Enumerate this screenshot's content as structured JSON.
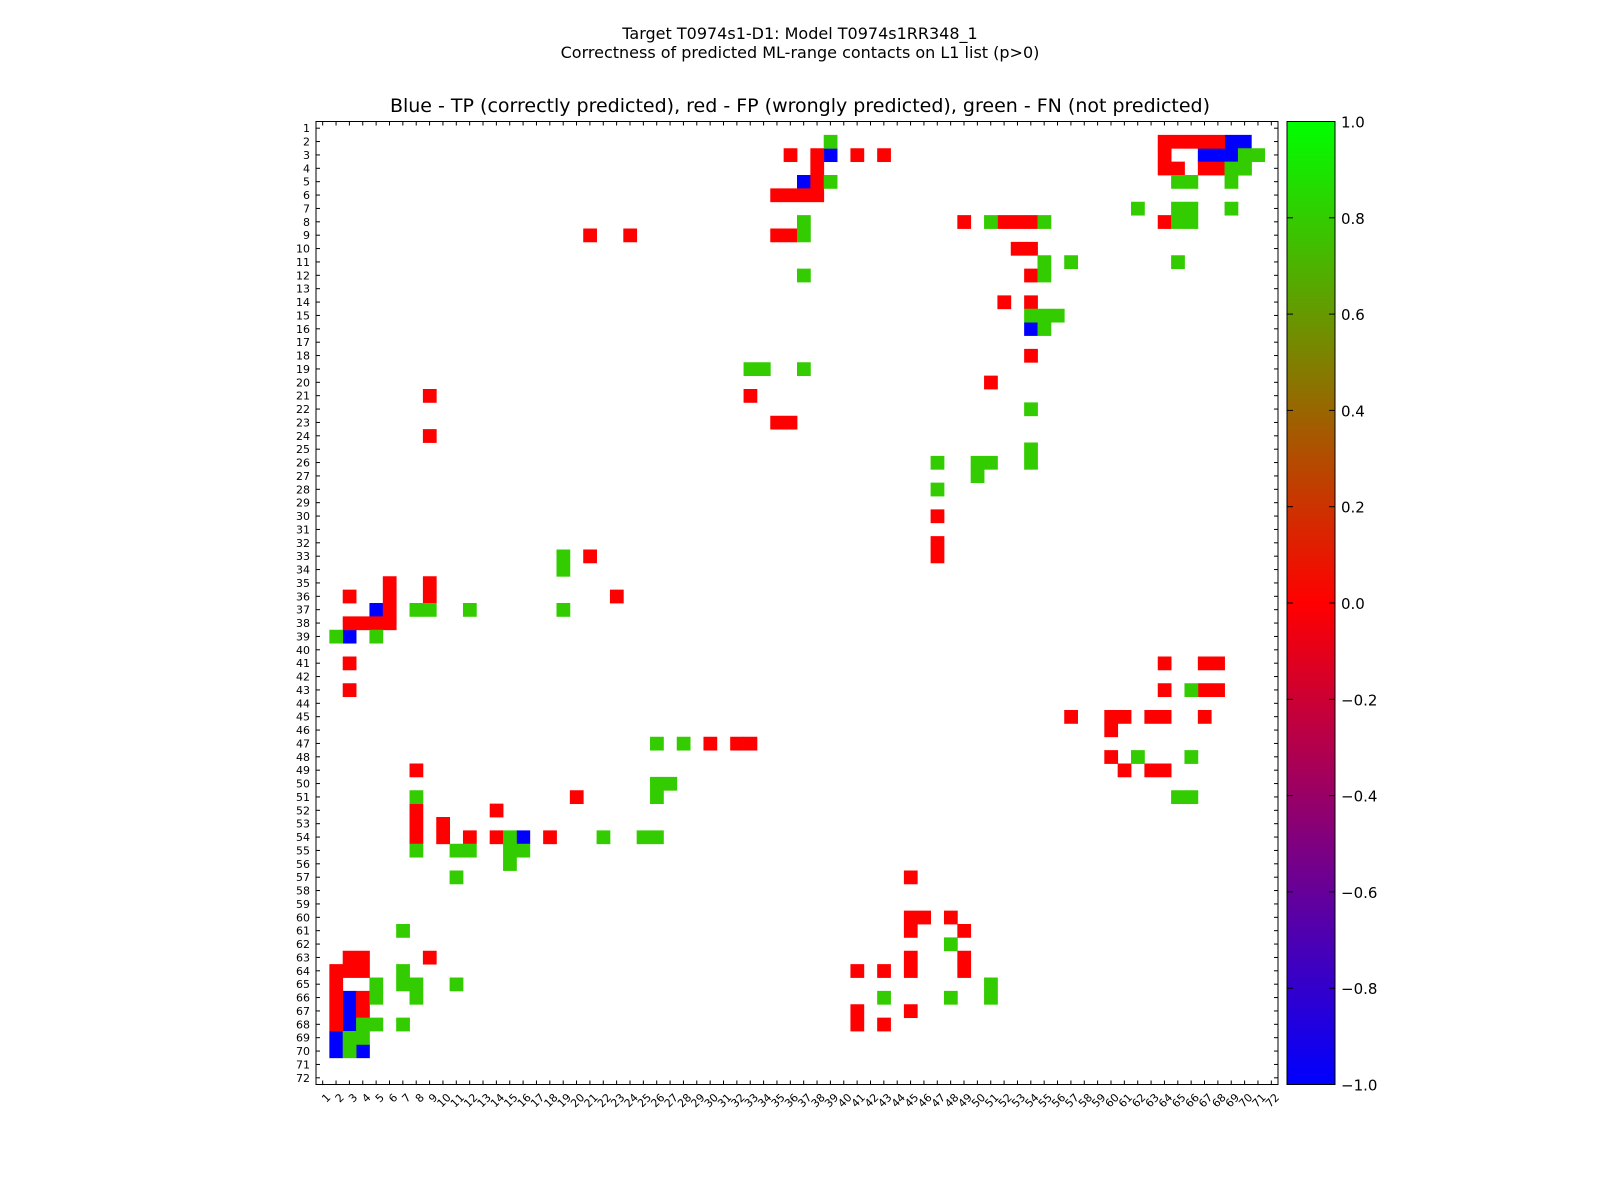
{
  "figure": {
    "suptitle_line1": "Target T0974s1-D1: Model T0974s1RR348_1",
    "suptitle_line2": "Correctness of predicted ML-range contacts on L1 list (p>0)"
  },
  "chart_data": {
    "type": "heatmap",
    "title": "Blue - TP (correctly predicted), red - FP (wrongly predicted), green - FN (not predicted)",
    "xlabel": "",
    "ylabel": "",
    "n_residues": 72,
    "x_tick_labels": [
      "1",
      "2",
      "3",
      "4",
      "5",
      "6",
      "7",
      "8",
      "9",
      "10",
      "11",
      "12",
      "13",
      "14",
      "15",
      "16",
      "17",
      "18",
      "19",
      "20",
      "21",
      "22",
      "23",
      "24",
      "25",
      "26",
      "27",
      "28",
      "29",
      "30",
      "31",
      "32",
      "33",
      "34",
      "35",
      "36",
      "37",
      "38",
      "39",
      "40",
      "41",
      "42",
      "43",
      "44",
      "45",
      "46",
      "47",
      "48",
      "49",
      "50",
      "51",
      "52",
      "53",
      "54",
      "55",
      "56",
      "57",
      "58",
      "59",
      "60",
      "61",
      "62",
      "63",
      "64",
      "65",
      "66",
      "67",
      "68",
      "69",
      "70",
      "71",
      "72"
    ],
    "y_tick_labels": [
      "1",
      "2",
      "3",
      "4",
      "5",
      "6",
      "7",
      "8",
      "9",
      "10",
      "11",
      "12",
      "13",
      "14",
      "15",
      "16",
      "17",
      "18",
      "19",
      "20",
      "21",
      "22",
      "23",
      "24",
      "25",
      "26",
      "27",
      "28",
      "29",
      "30",
      "31",
      "32",
      "33",
      "34",
      "35",
      "36",
      "37",
      "38",
      "39",
      "40",
      "41",
      "42",
      "43",
      "44",
      "45",
      "46",
      "47",
      "48",
      "49",
      "50",
      "51",
      "52",
      "53",
      "54",
      "55",
      "56",
      "57",
      "58",
      "59",
      "60",
      "61",
      "62",
      "63",
      "64",
      "65",
      "66",
      "67",
      "68",
      "69",
      "70",
      "71",
      "72"
    ],
    "colormap_colors": {
      "TP": "#0000ff",
      "FP": "#ff0000",
      "FN": "#33cc00"
    },
    "colorbar": {
      "range": [
        -1.0,
        1.0
      ],
      "stops": [
        {
          "value": -1.0,
          "color": "#0000ff"
        },
        {
          "value": 0.0,
          "color": "#ff0000"
        },
        {
          "value": 1.0,
          "color": "#00ff00"
        }
      ],
      "tick_labels": [
        "1.0",
        "0.8",
        "0.6",
        "0.4",
        "0.2",
        "0.0",
        "−0.2",
        "−0.4",
        "−0.6",
        "−0.8",
        "−1.0"
      ]
    },
    "cells": {
      "TP": [
        [
          2,
          69
        ],
        [
          2,
          70
        ],
        [
          3,
          39
        ],
        [
          3,
          67
        ],
        [
          3,
          68
        ],
        [
          3,
          69
        ],
        [
          4,
          70
        ],
        [
          5,
          37
        ],
        [
          16,
          54
        ],
        [
          37,
          5
        ],
        [
          39,
          3
        ],
        [
          54,
          16
        ],
        [
          66,
          3
        ],
        [
          67,
          3
        ],
        [
          68,
          3
        ],
        [
          69,
          2
        ],
        [
          70,
          2
        ],
        [
          70,
          4
        ]
      ],
      "FP": [
        [
          2,
          64
        ],
        [
          2,
          65
        ],
        [
          2,
          66
        ],
        [
          2,
          67
        ],
        [
          2,
          68
        ],
        [
          3,
          36
        ],
        [
          3,
          38
        ],
        [
          3,
          41
        ],
        [
          3,
          43
        ],
        [
          3,
          64
        ],
        [
          4,
          38
        ],
        [
          4,
          64
        ],
        [
          4,
          65
        ],
        [
          4,
          67
        ],
        [
          4,
          68
        ],
        [
          5,
          38
        ],
        [
          6,
          35
        ],
        [
          6,
          36
        ],
        [
          6,
          37
        ],
        [
          6,
          38
        ],
        [
          8,
          49
        ],
        [
          8,
          52
        ],
        [
          8,
          53
        ],
        [
          8,
          54
        ],
        [
          8,
          64
        ],
        [
          9,
          21
        ],
        [
          9,
          24
        ],
        [
          9,
          35
        ],
        [
          9,
          36
        ],
        [
          10,
          53
        ],
        [
          10,
          54
        ],
        [
          12,
          54
        ],
        [
          14,
          52
        ],
        [
          14,
          54
        ],
        [
          18,
          54
        ],
        [
          20,
          51
        ],
        [
          21,
          9
        ],
        [
          21,
          33
        ],
        [
          23,
          35
        ],
        [
          23,
          36
        ],
        [
          24,
          9
        ],
        [
          30,
          47
        ],
        [
          32,
          47
        ],
        [
          33,
          47
        ],
        [
          33,
          21
        ],
        [
          35,
          6
        ],
        [
          35,
          9
        ],
        [
          36,
          3
        ],
        [
          36,
          6
        ],
        [
          36,
          9
        ],
        [
          36,
          23
        ],
        [
          37,
          6
        ],
        [
          38,
          3
        ],
        [
          38,
          4
        ],
        [
          38,
          5
        ],
        [
          38,
          6
        ],
        [
          41,
          3
        ],
        [
          41,
          64
        ],
        [
          41,
          67
        ],
        [
          41,
          68
        ],
        [
          43,
          3
        ],
        [
          43,
          64
        ],
        [
          43,
          67
        ],
        [
          43,
          68
        ],
        [
          45,
          57
        ],
        [
          45,
          60
        ],
        [
          45,
          61
        ],
        [
          45,
          63
        ],
        [
          45,
          64
        ],
        [
          45,
          67
        ],
        [
          46,
          60
        ],
        [
          47,
          30
        ],
        [
          47,
          32
        ],
        [
          47,
          33
        ],
        [
          48,
          60
        ],
        [
          49,
          8
        ],
        [
          49,
          61
        ],
        [
          49,
          63
        ],
        [
          49,
          64
        ],
        [
          51,
          20
        ],
        [
          52,
          8
        ],
        [
          52,
          14
        ],
        [
          53,
          8
        ],
        [
          53,
          10
        ],
        [
          54,
          8
        ],
        [
          54,
          10
        ],
        [
          54,
          12
        ],
        [
          54,
          14
        ],
        [
          54,
          18
        ],
        [
          57,
          45
        ],
        [
          60,
          45
        ],
        [
          60,
          46
        ],
        [
          60,
          48
        ],
        [
          61,
          45
        ],
        [
          61,
          49
        ],
        [
          63,
          3
        ],
        [
          63,
          4
        ],
        [
          63,
          9
        ],
        [
          63,
          45
        ],
        [
          63,
          49
        ],
        [
          64,
          2
        ],
        [
          64,
          3
        ],
        [
          64,
          4
        ],
        [
          64,
          41
        ],
        [
          64,
          43
        ],
        [
          64,
          45
        ],
        [
          64,
          49
        ],
        [
          65,
          2
        ],
        [
          66,
          2
        ],
        [
          66,
          4
        ],
        [
          67,
          2
        ],
        [
          67,
          4
        ],
        [
          67,
          41
        ],
        [
          67,
          45
        ],
        [
          68,
          2
        ],
        [
          68,
          41
        ],
        [
          68,
          43
        ]
      ],
      "FN": [
        [
          2,
          39
        ],
        [
          3,
          70
        ],
        [
          3,
          71
        ],
        [
          4,
          69
        ],
        [
          4,
          70
        ],
        [
          5,
          39
        ],
        [
          5,
          65
        ],
        [
          5,
          66
        ],
        [
          5,
          69
        ],
        [
          7,
          62
        ],
        [
          7,
          65
        ],
        [
          7,
          66
        ],
        [
          7,
          69
        ],
        [
          8,
          37
        ],
        [
          8,
          51
        ],
        [
          8,
          55
        ],
        [
          8,
          65
        ],
        [
          8,
          66
        ],
        [
          9,
          37
        ],
        [
          11,
          55
        ],
        [
          11,
          57
        ],
        [
          11,
          65
        ],
        [
          12,
          37
        ],
        [
          12,
          55
        ],
        [
          15,
          54
        ],
        [
          15,
          55
        ],
        [
          15,
          56
        ],
        [
          16,
          55
        ],
        [
          19,
          33
        ],
        [
          19,
          34
        ],
        [
          19,
          37
        ],
        [
          22,
          54
        ],
        [
          25,
          54
        ],
        [
          26,
          47
        ],
        [
          26,
          50
        ],
        [
          26,
          51
        ],
        [
          26,
          54
        ],
        [
          27,
          50
        ],
        [
          28,
          47
        ],
        [
          33,
          19
        ],
        [
          34,
          19
        ],
        [
          37,
          8
        ],
        [
          37,
          9
        ],
        [
          37,
          12
        ],
        [
          37,
          19
        ],
        [
          39,
          2
        ],
        [
          39,
          5
        ],
        [
          43,
          66
        ],
        [
          47,
          26
        ],
        [
          47,
          28
        ],
        [
          48,
          62
        ],
        [
          48,
          66
        ],
        [
          50,
          26
        ],
        [
          50,
          27
        ],
        [
          51,
          8
        ],
        [
          51,
          26
        ],
        [
          51,
          65
        ],
        [
          51,
          66
        ],
        [
          54,
          15
        ],
        [
          54,
          22
        ],
        [
          54,
          25
        ],
        [
          54,
          26
        ],
        [
          55,
          8
        ],
        [
          55,
          11
        ],
        [
          55,
          12
        ],
        [
          55,
          15
        ],
        [
          55,
          16
        ],
        [
          56,
          15
        ],
        [
          57,
          11
        ],
        [
          61,
          7
        ],
        [
          62,
          48
        ],
        [
          64,
          7
        ],
        [
          65,
          5
        ],
        [
          65,
          7
        ],
        [
          65,
          8
        ],
        [
          65,
          11
        ],
        [
          65,
          51
        ],
        [
          66,
          5
        ],
        [
          66,
          8
        ],
        [
          66,
          43
        ],
        [
          66,
          48
        ],
        [
          66,
          51
        ],
        [
          68,
          4
        ],
        [
          68,
          5
        ],
        [
          68,
          7
        ],
        [
          69,
          3
        ],
        [
          69,
          4
        ],
        [
          70,
          3
        ]
      ]
    }
  }
}
